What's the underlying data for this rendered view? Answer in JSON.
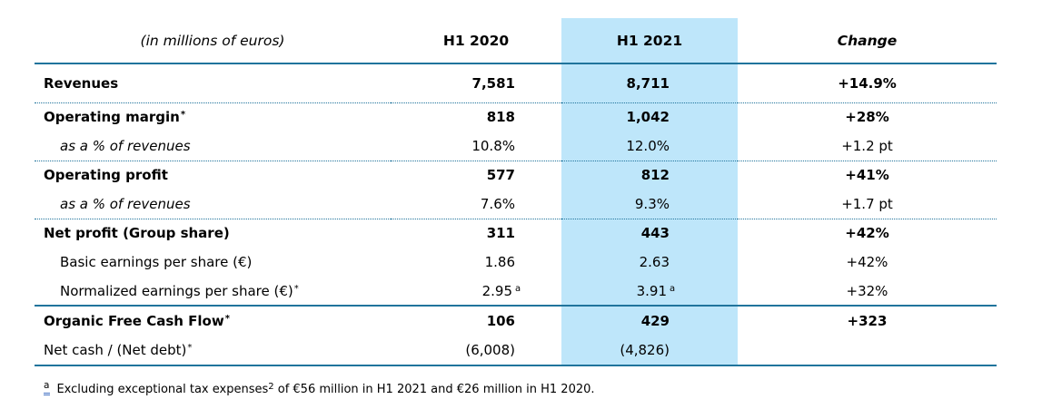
{
  "colors": {
    "line": "#20749c",
    "highlight": "#bee6fa",
    "footnote_marker_underline": "#4472c4"
  },
  "table": {
    "header": {
      "unit_label": "(in millions of euros)",
      "col_2020": "H1 2020",
      "col_2021": "H1 2021",
      "col_change": "Change"
    },
    "rows": [
      {
        "label": "Revenues",
        "label_sup": "",
        "style": "bold",
        "sep": "solid",
        "v2020": "7,581",
        "v2020_sup": "",
        "v2021": "8,711",
        "v2021_sup": "",
        "change": "+14.9%"
      },
      {
        "label": "Operating margin",
        "label_sup": "*",
        "style": "bold",
        "sep": "dotted",
        "v2020": "818",
        "v2020_sup": "",
        "v2021": "1,042",
        "v2021_sup": "",
        "change": "+28%"
      },
      {
        "label": "as a % of revenues",
        "label_sup": "",
        "style": "italic-indent",
        "sep": "",
        "v2020": "10.8%",
        "v2020_sup": "",
        "v2021": "12.0%",
        "v2021_sup": "",
        "change": "+1.2 pt"
      },
      {
        "label": "Operating profit",
        "label_sup": "",
        "style": "bold",
        "sep": "dotted",
        "v2020": "577",
        "v2020_sup": "",
        "v2021": "812",
        "v2021_sup": "",
        "change": "+41%"
      },
      {
        "label": "as a % of revenues",
        "label_sup": "",
        "style": "italic-indent",
        "sep": "",
        "v2020": "7.6%",
        "v2020_sup": "",
        "v2021": "9.3%",
        "v2021_sup": "",
        "change": "+1.7 pt"
      },
      {
        "label": "Net profit (Group share)",
        "label_sup": "",
        "style": "bold",
        "sep": "dotted",
        "v2020": "311",
        "v2020_sup": "",
        "v2021": "443",
        "v2021_sup": "",
        "change": "+42%"
      },
      {
        "label": "Basic earnings per share (€)",
        "label_sup": "",
        "style": "indent",
        "sep": "",
        "v2020": "1.86",
        "v2020_sup": "",
        "v2021": "2.63",
        "v2021_sup": "",
        "change": "+42%"
      },
      {
        "label": "Normalized earnings per share (€)",
        "label_sup": "*",
        "style": "indent",
        "sep": "",
        "v2020": "2.95",
        "v2020_sup": "a",
        "v2021": "3.91",
        "v2021_sup": "a",
        "change": "+32%"
      },
      {
        "label": "Organic Free Cash Flow",
        "label_sup": "*",
        "style": "bold",
        "sep": "solid",
        "v2020": "106",
        "v2020_sup": "",
        "v2021": "429",
        "v2021_sup": "",
        "change": "+323"
      },
      {
        "label": "Net cash / (Net debt)",
        "label_sup": "*",
        "style": "normal",
        "sep": "",
        "v2020": "(6,008)",
        "v2020_sup": "",
        "v2021": "(4,826)",
        "v2021_sup": "",
        "change": ""
      }
    ]
  },
  "footnote": {
    "marker": "a",
    "text_1": "Excluding exceptional tax expenses",
    "ref": "2",
    "text_2": " of €56 million in H1 2021 and €26 million in H1 2020."
  }
}
